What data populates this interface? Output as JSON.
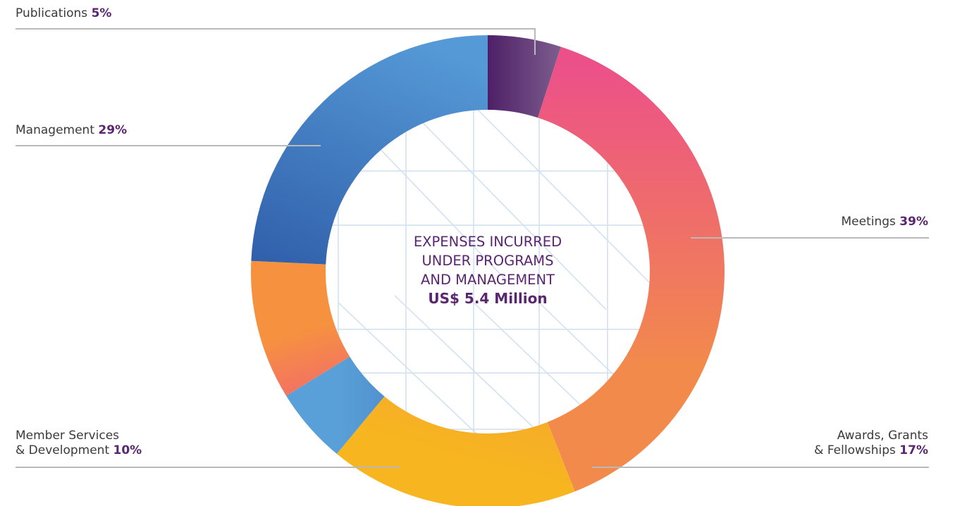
{
  "colors": {
    "accent": "#5b2670",
    "label_text": "#3a3a3a",
    "grid": "#cfe0f1",
    "leader": "#b9b9b9"
  },
  "center": {
    "line1": "EXPENSES INCURRED",
    "line2": "UNDER PROGRAMS",
    "line3": "AND MANAGEMENT",
    "amount": "US$ 5.4 Million"
  },
  "labels": {
    "publications": {
      "name": "Publications",
      "pct": "5%"
    },
    "management": {
      "name": "Management",
      "pct": "29%"
    },
    "meetings": {
      "name": "Meetings",
      "pct": "39%"
    },
    "member": {
      "name1": "Member Services",
      "name2": "& Development",
      "pct": "10%"
    },
    "awards": {
      "name1": "Awards, Grants",
      "name2": "& Fellowships",
      "pct": "17%"
    }
  },
  "chart_data": {
    "type": "pie",
    "donut": true,
    "title": "EXPENSES INCURRED UNDER PROGRAMS AND MANAGEMENT",
    "total": "US$ 5.4 Million",
    "categories": [
      "Publications",
      "Meetings",
      "Awards, Grants & Fellowships",
      "Management",
      "Member Services & Development"
    ],
    "values": [
      5,
      39,
      17,
      29,
      10
    ],
    "units": "%",
    "slices": [
      {
        "name": "Publications",
        "value": 5,
        "colors": [
          "#4e1f67",
          "#7d5e8e"
        ]
      },
      {
        "name": "Meetings",
        "value": 39,
        "colors": [
          "#ec5089",
          "#f28a4c"
        ]
      },
      {
        "name": "Awards, Grants & Fellowships",
        "value": 17,
        "colors": [
          "#f39d38",
          "#f7b520"
        ]
      },
      {
        "name": "Management",
        "value": 29,
        "colors": [
          "#5599d6",
          "#2a55a3"
        ]
      },
      {
        "name": "Member Services & Development",
        "value": 10,
        "colors": [
          "#f6923f",
          "#ee4d8c"
        ]
      }
    ],
    "slice_order_clockwise_from_top": [
      "Publications",
      "Meetings",
      "Awards, Grants & Fellowships",
      "Member Services & Development",
      "Management"
    ],
    "bottom_slice": {
      "name": "Member Services & Development (bottom segment)",
      "colors": [
        "#5aa0d8",
        "#2a55a3"
      ]
    },
    "legend": "labels-outside"
  }
}
